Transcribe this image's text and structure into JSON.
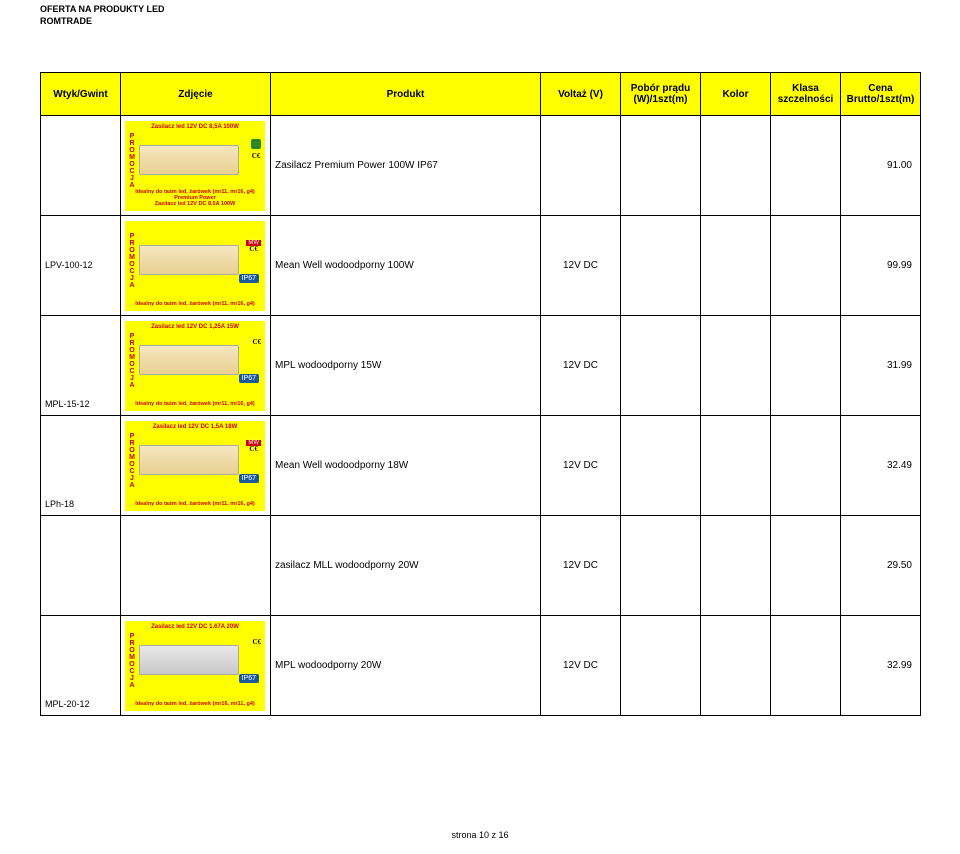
{
  "header": {
    "line1": "OFERTA NA PRODUKTY LED",
    "line2": "ROMTRADE"
  },
  "columns": {
    "c1": "Wtyk/Gwint",
    "c2": "Zdjęcie",
    "c3": "Produkt",
    "c4": "Voltaż (V)",
    "c5": "Pobór prądu (W)/1szt(m)",
    "c6": "Kolor",
    "c7": "Klasa szczelności",
    "c8": "Cena Brutto/1szt(m)"
  },
  "rows": [
    {
      "wtyk": "",
      "thumb": {
        "top": "Zasilacz led 12V DC 8,5A 100W",
        "device": "beige",
        "badges": [
          "recycle",
          "ce-triangle"
        ],
        "ip67": "",
        "bottom": "Idealny do taśm led, żarówek (mr11, mr16, g4)\nPremium Power\nZasilacz led 12V DC 8.5A 100W"
      },
      "produkt": "Zasilacz Premium Power 100W IP67",
      "volt": "",
      "pobor": "",
      "kolor": "",
      "klasa": "",
      "cena": "91.00"
    },
    {
      "wtyk": "LPV-100-12",
      "thumb": {
        "top": "",
        "device": "beige",
        "badges": [
          "mw",
          "ce"
        ],
        "ip67": "IP67",
        "bottom": "Idealny do taśm led, żarówek (mr11, mr16, g4)"
      },
      "produkt": "Mean Well wodoodporny 100W",
      "volt": "12V DC",
      "pobor": "",
      "kolor": "",
      "klasa": "",
      "cena": "99.99"
    },
    {
      "wtyk": "MPL-15-12",
      "wtyk_pos": "bottom",
      "thumb": {
        "top": "Zasilacz led 12V DC 1,25A 15W",
        "device": "beige",
        "badges": [
          "ce"
        ],
        "ip67": "IP67",
        "bottom": "Idealny do taśm led, żarówek (mr11, mr16, g4)"
      },
      "produkt": "MPL wodoodporny 15W",
      "volt": "12V DC",
      "pobor": "",
      "kolor": "",
      "klasa": "",
      "cena": "31.99"
    },
    {
      "wtyk": "LPh-18",
      "wtyk_pos": "bottom",
      "thumb": {
        "top": "Zasilacz led 12V DC 1,5A 18W",
        "device": "beige",
        "badges": [
          "mw",
          "ce"
        ],
        "ip67": "IP67",
        "bottom": "Idealny do taśm led, żarówek (mr11, mr16, g4)"
      },
      "produkt": "Mean Well  wodoodporny 18W",
      "volt": "12V DC",
      "pobor": "",
      "kolor": "",
      "klasa": "",
      "cena": "32.49"
    },
    {
      "wtyk": "",
      "thumb": null,
      "produkt": "zasilacz MLL wodoodporny 20W",
      "volt": "12V DC",
      "pobor": "",
      "kolor": "",
      "klasa": "",
      "cena": "29.50"
    },
    {
      "wtyk": "MPL-20-12",
      "wtyk_pos": "bottom",
      "thumb": {
        "top": "Zasilacz led 12V DC 1.67A 20W",
        "device": "gray",
        "badges": [
          "ce"
        ],
        "ip67": "IP67",
        "bottom": "Idealny do taśm led, żarówek (mr16, mr11, g4)"
      },
      "produkt": "MPL wodoodporny 20W",
      "volt": "12V DC",
      "pobor": "",
      "kolor": "",
      "klasa": "",
      "cena": "32.99"
    }
  ],
  "footer": "strona 10 z 16",
  "promocja_letters": "PROMOCJA"
}
